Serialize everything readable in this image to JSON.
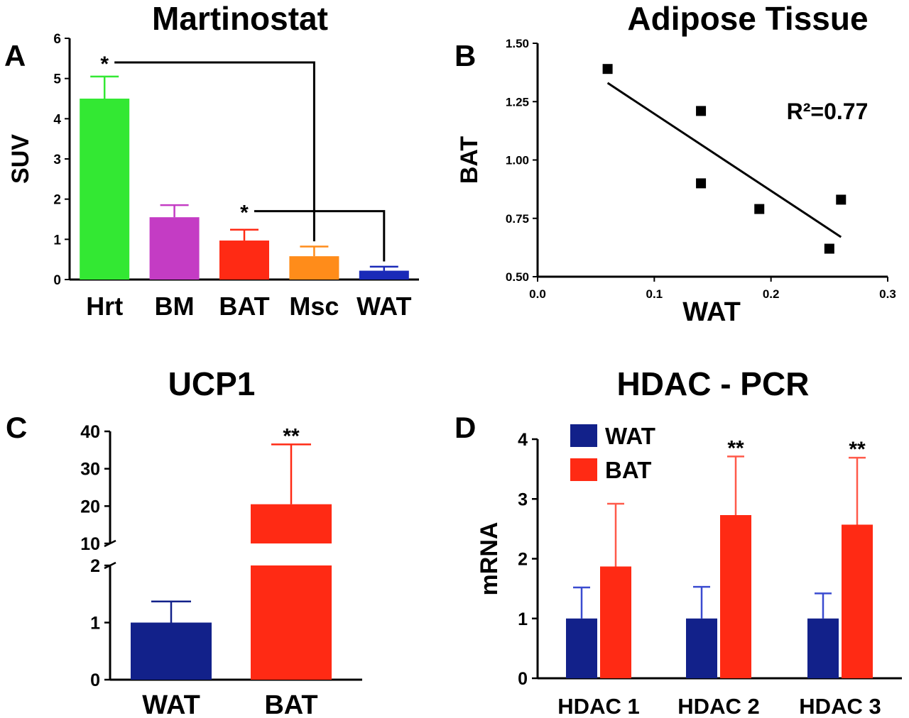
{
  "chart_data": [
    {
      "panel": "A",
      "type": "bar",
      "title": "Martinostat",
      "ylabel": "SUV",
      "xlabel": "",
      "ylim": [
        0,
        6
      ],
      "yticks": [
        "0",
        "1",
        "2",
        "3",
        "4",
        "5",
        "6"
      ],
      "categories": [
        "Hrt",
        "BM",
        "BAT",
        "Msc",
        "WAT"
      ],
      "values": [
        4.5,
        1.55,
        0.97,
        0.58,
        0.22
      ],
      "errors": [
        0.55,
        0.3,
        0.27,
        0.24,
        0.1
      ],
      "colors": [
        "#33e833",
        "#c43cc4",
        "#ff2a14",
        "#ff8c1a",
        "#1a2ab8"
      ],
      "annotations": [
        {
          "text": "*",
          "from": "Hrt",
          "to": "Msc"
        },
        {
          "text": "*",
          "from": "BAT",
          "to": "WAT"
        }
      ]
    },
    {
      "panel": "B",
      "type": "scatter",
      "title": "Adipose Tissue",
      "xlabel": "WAT",
      "ylabel": "BAT",
      "xlim": [
        0.0,
        0.3
      ],
      "ylim": [
        0.5,
        1.5
      ],
      "xticks": [
        "0.0",
        "0.1",
        "0.2",
        "0.3"
      ],
      "yticks": [
        "0.50",
        "0.75",
        "1.00",
        "1.25",
        "1.50"
      ],
      "points": [
        {
          "x": 0.06,
          "y": 1.39
        },
        {
          "x": 0.14,
          "y": 1.21
        },
        {
          "x": 0.14,
          "y": 0.9
        },
        {
          "x": 0.19,
          "y": 0.79
        },
        {
          "x": 0.25,
          "y": 0.62
        },
        {
          "x": 0.26,
          "y": 0.83
        }
      ],
      "fit_line": {
        "x1": 0.06,
        "y1": 1.33,
        "x2": 0.26,
        "y2": 0.67
      },
      "r2_label": "R²=0.77"
    },
    {
      "panel": "C",
      "type": "bar",
      "title": "UCP1",
      "xlabel": "",
      "ylabel": "",
      "broken_axis": true,
      "ylim_lower": [
        0,
        2
      ],
      "ylim_upper": [
        10,
        40
      ],
      "yticks_lower": [
        "0",
        "1",
        "2"
      ],
      "yticks_upper": [
        "10",
        "20",
        "30",
        "40"
      ],
      "categories": [
        "WAT",
        "BAT"
      ],
      "values": [
        1.0,
        20.5
      ],
      "errors": [
        0.37,
        16
      ],
      "colors": [
        "#12218a",
        "#ff2a14"
      ],
      "annotations": [
        {
          "text": "**",
          "on": "BAT"
        }
      ]
    },
    {
      "panel": "D",
      "type": "bar",
      "title": "HDAC - PCR",
      "xlabel": "",
      "ylabel": "mRNA",
      "ylim": [
        0,
        4
      ],
      "yticks": [
        "0",
        "1",
        "2",
        "3",
        "4"
      ],
      "categories": [
        "HDAC 1",
        "HDAC 2",
        "HDAC 3"
      ],
      "series": [
        {
          "name": "WAT",
          "color": "#12218a",
          "values": [
            1.0,
            1.0,
            1.0
          ],
          "errors": [
            0.52,
            0.53,
            0.42
          ]
        },
        {
          "name": "BAT",
          "color": "#ff2a14",
          "values": [
            1.87,
            2.73,
            2.57
          ],
          "errors": [
            1.05,
            0.98,
            1.12
          ]
        }
      ],
      "annotations": [
        {
          "text": "**",
          "on": "HDAC 2"
        },
        {
          "text": "**",
          "on": "HDAC 3"
        }
      ],
      "legend_position": "top-left"
    }
  ]
}
